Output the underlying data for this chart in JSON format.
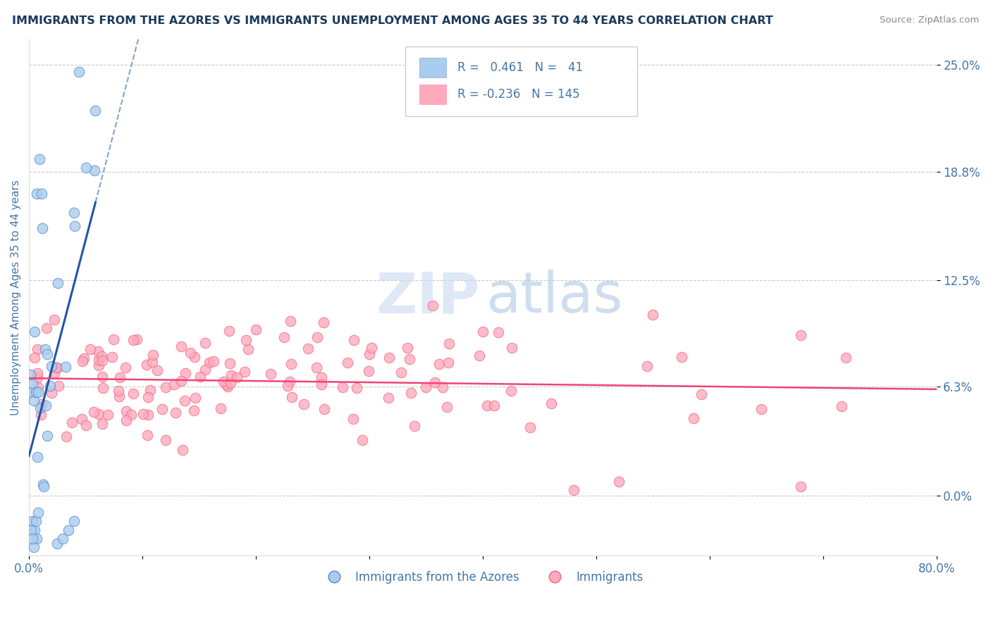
{
  "title": "IMMIGRANTS FROM THE AZORES VS IMMIGRANTS UNEMPLOYMENT AMONG AGES 35 TO 44 YEARS CORRELATION CHART",
  "source": "Source: ZipAtlas.com",
  "ylabel": "Unemployment Among Ages 35 to 44 years",
  "x_min": 0.0,
  "x_max": 0.8,
  "y_min": -0.035,
  "y_max": 0.265,
  "y_ticks": [
    0.0,
    0.063,
    0.125,
    0.188,
    0.25
  ],
  "y_tick_labels": [
    "0.0%",
    "6.3%",
    "12.5%",
    "18.8%",
    "25.0%"
  ],
  "r_blue": 0.461,
  "n_blue": 41,
  "r_pink": -0.236,
  "n_pink": 145,
  "blue_scatter_color": "#aaccee",
  "blue_edge_color": "#5588cc",
  "pink_scatter_color": "#ffaabb",
  "pink_edge_color": "#ee6688",
  "blue_line_color": "#2255aa",
  "pink_line_color": "#ee4477",
  "legend_box_blue": "#aaccee",
  "legend_box_pink": "#ffaabb",
  "title_color": "#1a3a5c",
  "label_color": "#4477aa",
  "tick_color": "#4477aa",
  "source_color": "#888888",
  "watermark_zip_color": "#c8daf0",
  "watermark_atlas_color": "#a8c4e0"
}
